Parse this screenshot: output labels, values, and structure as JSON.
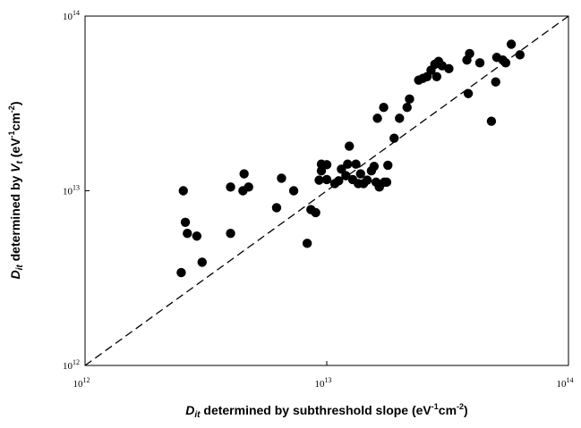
{
  "chart_data": {
    "type": "scatter",
    "title": "",
    "xscale": "log",
    "yscale": "log",
    "xlim": [
      1000000000000.0,
      100000000000000.0
    ],
    "ylim": [
      1000000000000.0,
      100000000000000.0
    ],
    "grid": false,
    "legend": "none",
    "xlabel": {
      "prefix": "D",
      "sub": "it",
      "text": " determined by subthreshold slope (eV",
      "sup1": "-1",
      "mid": "cm",
      "sup2": "-2",
      "suffix": ")"
    },
    "ylabel": {
      "prefix": "D",
      "sub": "it",
      "text": " determined by ",
      "var": "V",
      "varsub": "t",
      "text2": " (eV",
      "sup1": "-1",
      "mid": "cm",
      "sup2": "-2",
      "suffix": ")"
    },
    "x_ticks": [
      {
        "value": 1000000000000.0,
        "base": "10",
        "exp": "12"
      },
      {
        "value": 10000000000000.0,
        "base": "10",
        "exp": "13"
      },
      {
        "value": 100000000000000.0,
        "base": "10",
        "exp": "14"
      }
    ],
    "y_ticks": [
      {
        "value": 1000000000000.0,
        "base": "10",
        "exp": "12"
      },
      {
        "value": 10000000000000.0,
        "base": "10",
        "exp": "13"
      },
      {
        "value": 100000000000000.0,
        "base": "10",
        "exp": "14"
      }
    ],
    "reference_line": {
      "style": "dashed",
      "description": "y = x",
      "from": [
        1000000000000.0,
        1000000000000.0
      ],
      "to": [
        100000000000000.0,
        100000000000000.0
      ]
    },
    "marker_color": "#000000",
    "series": [
      {
        "points": [
          [
            2500000000000.0,
            3400000000000.0
          ],
          [
            2550000000000.0,
            10000000000000.0
          ],
          [
            2600000000000.0,
            6600000000000.0
          ],
          [
            2650000000000.0,
            5700000000000.0
          ],
          [
            2900000000000.0,
            5500000000000.0
          ],
          [
            3050000000000.0,
            3900000000000.0
          ],
          [
            4000000000000.0,
            10500000000000.0
          ],
          [
            4000000000000.0,
            5700000000000.0
          ],
          [
            4500000000000.0,
            10000000000000.0
          ],
          [
            4550000000000.0,
            12500000000000.0
          ],
          [
            4750000000000.0,
            10500000000000.0
          ],
          [
            6200000000000.0,
            8000000000000.0
          ],
          [
            6500000000000.0,
            11800000000000.0
          ],
          [
            7300000000000.0,
            10000000000000.0
          ],
          [
            8300000000000.0,
            5000000000000.0
          ],
          [
            8600000000000.0,
            7800000000000.0
          ],
          [
            9000000000000.0,
            7500000000000.0
          ],
          [
            9300000000000.0,
            11500000000000.0
          ],
          [
            9500000000000.0,
            13000000000000.0
          ],
          [
            9500000000000.0,
            14200000000000.0
          ],
          [
            10000000000000.0,
            11600000000000.0
          ],
          [
            10000000000000.0,
            14100000000000.0
          ],
          [
            10800000000000.0,
            11000000000000.0
          ],
          [
            11200000000000.0,
            11400000000000.0
          ],
          [
            11500000000000.0,
            13300000000000.0
          ],
          [
            12000000000000.0,
            12200000000000.0
          ],
          [
            12200000000000.0,
            14200000000000.0
          ],
          [
            12400000000000.0,
            18000000000000.0
          ],
          [
            12800000000000.0,
            11600000000000.0
          ],
          [
            13200000000000.0,
            14200000000000.0
          ],
          [
            13500000000000.0,
            11000000000000.0
          ],
          [
            13800000000000.0,
            12500000000000.0
          ],
          [
            14200000000000.0,
            11000000000000.0
          ],
          [
            14700000000000.0,
            11500000000000.0
          ],
          [
            15300000000000.0,
            13000000000000.0
          ],
          [
            15700000000000.0,
            13800000000000.0
          ],
          [
            16000000000000.0,
            11200000000000.0
          ],
          [
            16200000000000.0,
            26000000000000.0
          ],
          [
            16500000000000.0,
            10500000000000.0
          ],
          [
            17200000000000.0,
            30000000000000.0
          ],
          [
            17300000000000.0,
            11200000000000.0
          ],
          [
            17700000000000.0,
            11200000000000.0
          ],
          [
            17900000000000.0,
            14000000000000.0
          ],
          [
            19000000000000.0,
            20000000000000.0
          ],
          [
            20000000000000.0,
            26000000000000.0
          ],
          [
            21500000000000.0,
            30000000000000.0
          ],
          [
            22000000000000.0,
            33500000000000.0
          ],
          [
            24000000000000.0,
            43000000000000.0
          ],
          [
            25000000000000.0,
            44000000000000.0
          ],
          [
            26000000000000.0,
            45000000000000.0
          ],
          [
            27000000000000.0,
            49000000000000.0
          ],
          [
            28000000000000.0,
            53000000000000.0
          ],
          [
            28500000000000.0,
            45000000000000.0
          ],
          [
            29000000000000.0,
            55000000000000.0
          ],
          [
            30000000000000.0,
            52000000000000.0
          ],
          [
            32000000000000.0,
            50000000000000.0
          ],
          [
            38000000000000.0,
            56000000000000.0
          ],
          [
            38500000000000.0,
            36000000000000.0
          ],
          [
            39000000000000.0,
            61000000000000.0
          ],
          [
            43000000000000.0,
            54000000000000.0
          ],
          [
            48000000000000.0,
            25000000000000.0
          ],
          [
            50000000000000.0,
            42000000000000.0
          ],
          [
            50500000000000.0,
            58000000000000.0
          ],
          [
            53500000000000.0,
            56000000000000.0
          ],
          [
            55000000000000.0,
            54000000000000.0
          ],
          [
            58000000000000.0,
            69000000000000.0
          ],
          [
            63000000000000.0,
            60000000000000.0
          ]
        ]
      }
    ]
  }
}
